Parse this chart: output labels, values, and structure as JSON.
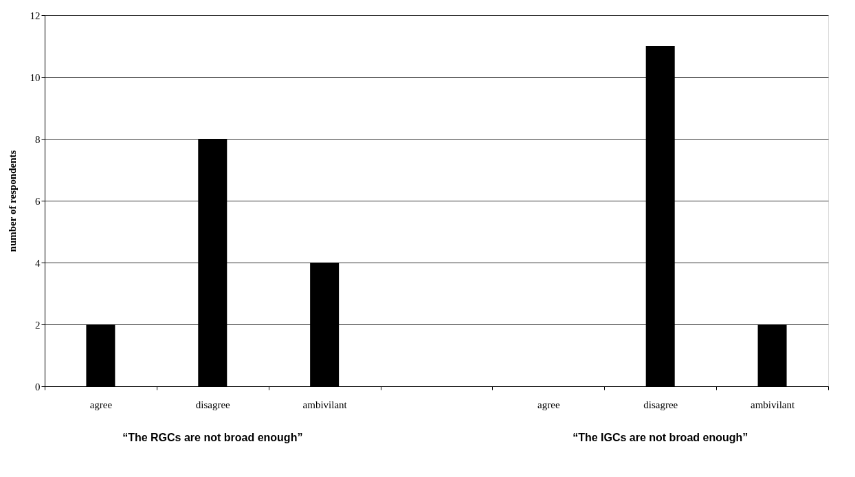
{
  "chart_data": {
    "type": "bar",
    "ylabel": "number of respondents",
    "categories": [
      "agree",
      "disagree",
      "ambivilant",
      null,
      "agree",
      "disagree",
      "ambivilant"
    ],
    "values": [
      2,
      8,
      4,
      null,
      0,
      11,
      2
    ],
    "color": "#000000",
    "ylim": [
      0,
      12
    ],
    "yticks": [
      0,
      2,
      4,
      6,
      8,
      10,
      12
    ],
    "grid": "y",
    "annotations": [
      "“The RGCs are not broad enough”",
      "“The IGCs are not broad enough”"
    ]
  }
}
